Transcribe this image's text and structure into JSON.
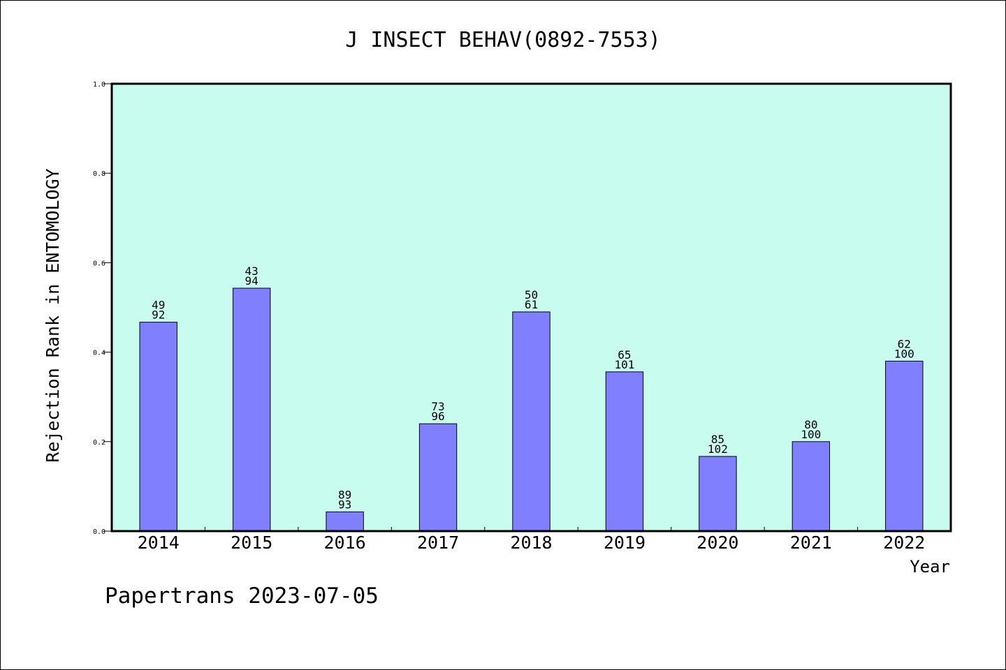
{
  "chart_data": {
    "type": "bar",
    "title": "J INSECT BEHAV(0892-7553)",
    "xlabel": "Year",
    "ylabel": "Rejection Rank in ENTOMOLOGY",
    "ylim": [
      0,
      1.0
    ],
    "yticks": [
      "0.0",
      "0.2",
      "0.4",
      "0.6",
      "0.8",
      "1.0"
    ],
    "categories": [
      "2014",
      "2015",
      "2016",
      "2017",
      "2018",
      "2019",
      "2020",
      "2021",
      "2022"
    ],
    "values": [
      0.467,
      0.543,
      0.043,
      0.24,
      0.49,
      0.356,
      0.167,
      0.2,
      0.38
    ],
    "label_top": [
      "49",
      "43",
      "89",
      "73",
      "50",
      "65",
      "85",
      "80",
      "62"
    ],
    "label_bottom": [
      "92",
      "94",
      "93",
      "96",
      "61",
      "101",
      "102",
      "100",
      "100"
    ],
    "grid": false,
    "legend": "none",
    "colors": {
      "plot_background": "#c8fcee",
      "bar_fill": "#8080ff",
      "bar_edge": "#000000"
    }
  },
  "footer": "Papertrans 2023-07-05"
}
